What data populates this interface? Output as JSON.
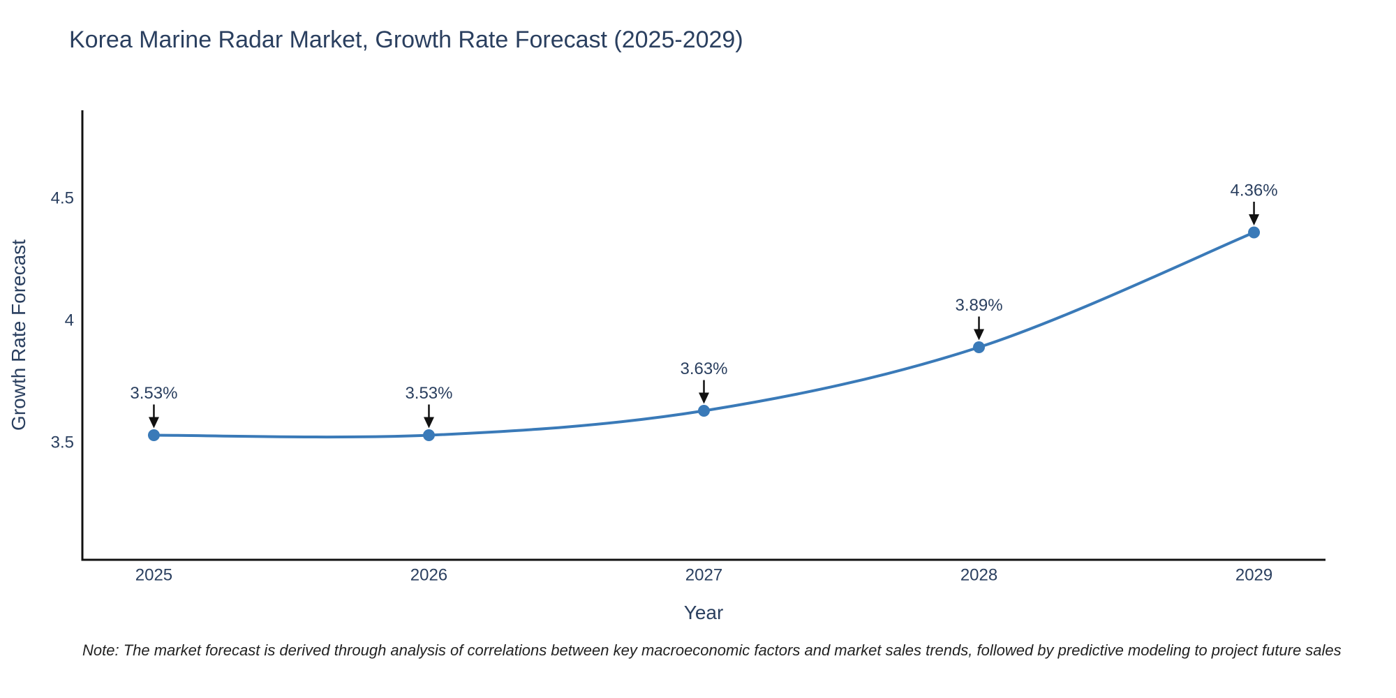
{
  "title": "Korea Marine Radar Market, Growth Rate Forecast (2025-2029)",
  "footnote": "Note: The market forecast is derived through analysis of correlations between key macroeconomic factors and market sales trends, followed by predictive modeling to project future sales",
  "chart_data": {
    "type": "line",
    "title": "Korea Marine Radar Market, Growth Rate Forecast (2025-2029)",
    "xlabel": "Year",
    "ylabel": "Growth Rate Forecast",
    "x": [
      2025,
      2026,
      2027,
      2028,
      2029
    ],
    "values": [
      3.53,
      3.53,
      3.63,
      3.89,
      4.36
    ],
    "point_labels": [
      "3.53%",
      "3.53%",
      "3.63%",
      "3.89%",
      "4.36%"
    ],
    "line_shape": "spline",
    "markers": true,
    "annotations_arrows": true,
    "xlim": [
      2024.74,
      2029.26
    ],
    "ylim": [
      3.02,
      4.86
    ],
    "xticks": [
      2025,
      2026,
      2027,
      2028,
      2029
    ],
    "xtick_labels": [
      "2025",
      "2026",
      "2027",
      "2028",
      "2029"
    ],
    "yticks": [
      3.5,
      4.0,
      4.5
    ],
    "ytick_labels": [
      "3.5",
      "4",
      "4.5"
    ],
    "grid": false,
    "legend": "none",
    "colors": {
      "line": "#3a7ab8",
      "marker": "#3a7ab8",
      "arrow": "#111111",
      "tick_text": "#2a3f5f",
      "annotation_text": "#2a3f5f",
      "axis_line": "#111111",
      "background": "#ffffff"
    }
  }
}
